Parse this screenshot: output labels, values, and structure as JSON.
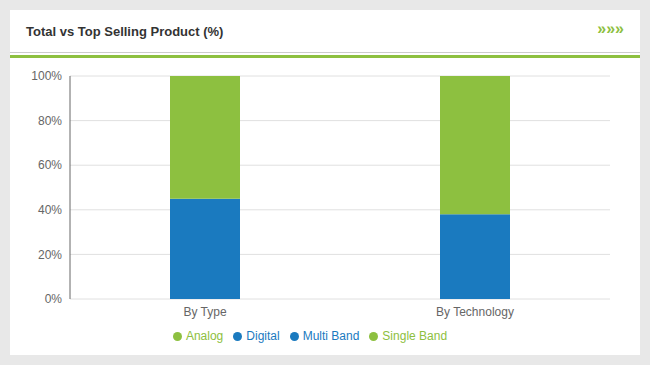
{
  "chart_data": {
    "type": "bar",
    "title": "Total vs Top Selling Product (%)",
    "annotations": [
      "»»»"
    ],
    "categories": [
      "By Type",
      "By Technology"
    ],
    "stacked": true,
    "series": [
      {
        "name": "Digital",
        "color": "#1a7abf",
        "values": [
          45,
          null
        ]
      },
      {
        "name": "Analog",
        "color": "#8dc040",
        "values": [
          55,
          null
        ]
      },
      {
        "name": "Multi Band",
        "color": "#1a7abf",
        "values": [
          null,
          38
        ]
      },
      {
        "name": "Single Band",
        "color": "#8dc040",
        "values": [
          null,
          62
        ]
      }
    ],
    "ylim": [
      0,
      100
    ],
    "yticks": [
      {
        "value": 0,
        "label": "0%"
      },
      {
        "value": 20,
        "label": "20%"
      },
      {
        "value": 40,
        "label": "40%"
      },
      {
        "value": 60,
        "label": "60%"
      },
      {
        "value": 80,
        "label": "80%"
      },
      {
        "value": 100,
        "label": "100%"
      }
    ],
    "grid": true,
    "legend": "bottom"
  }
}
